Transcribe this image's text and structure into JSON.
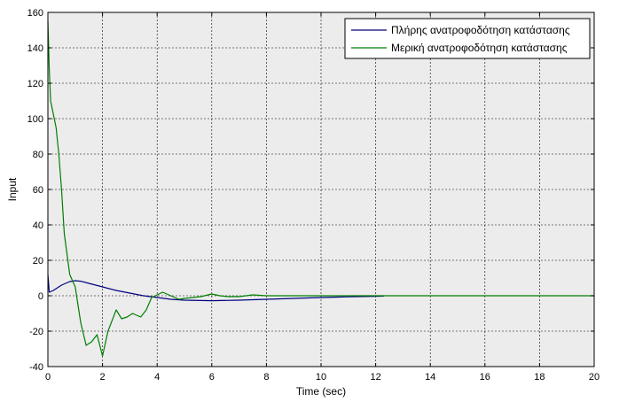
{
  "chart_data": {
    "type": "line",
    "xlabel": "Time (sec)",
    "ylabel": "Input",
    "xlim": [
      0,
      20
    ],
    "ylim": [
      -40,
      160
    ],
    "xticks": [
      0,
      2,
      4,
      6,
      8,
      10,
      12,
      14,
      16,
      18,
      20
    ],
    "yticks": [
      -40,
      -20,
      0,
      20,
      40,
      60,
      80,
      100,
      120,
      140,
      160
    ],
    "grid": true,
    "legend_position": "top-right",
    "background_color": "#ececec",
    "series": [
      {
        "name": "Πλήρης ανατροφοδότηση κατάστασης",
        "color": "#00007f",
        "x": [
          0,
          0.05,
          0.2,
          0.5,
          0.8,
          1.0,
          1.2,
          1.5,
          2.0,
          2.5,
          3.0,
          3.5,
          4.0,
          4.5,
          5.0,
          6.0,
          7.0,
          8.0,
          9.0,
          10.0,
          11.0,
          12.0,
          12.3
        ],
        "y": [
          12,
          2,
          3,
          6,
          8,
          8.5,
          8.2,
          7,
          5,
          3,
          1.5,
          0,
          -1,
          -2,
          -2.5,
          -2.8,
          -2.5,
          -2,
          -1.5,
          -1,
          -0.6,
          -0.3,
          -0.2
        ]
      },
      {
        "name": "Μερική ανατροφοδότηση κατάστασης",
        "color": "#007f00",
        "x": [
          0,
          0.05,
          0.1,
          0.3,
          0.4,
          0.5,
          0.6,
          0.8,
          1.0,
          1.2,
          1.4,
          1.6,
          1.8,
          2.0,
          2.2,
          2.5,
          2.7,
          2.9,
          3.1,
          3.4,
          3.6,
          3.8,
          4.0,
          4.2,
          4.5,
          4.8,
          5.0,
          5.3,
          5.6,
          6.0,
          6.3,
          6.6,
          7.0,
          7.5,
          8.0,
          9.0,
          10.0,
          12.0,
          14.0,
          16.0,
          18.0,
          20.0
        ],
        "y": [
          155,
          128,
          110,
          95,
          80,
          60,
          35,
          12,
          5,
          -15,
          -28,
          -26,
          -22,
          -34,
          -20,
          -8,
          -13,
          -12,
          -10,
          -12,
          -8,
          -1,
          0.5,
          2,
          0,
          -2,
          -1.5,
          -1,
          -0.5,
          1,
          0,
          -0.5,
          -0.5,
          0.5,
          0,
          0,
          0,
          0,
          0,
          0,
          0,
          0
        ]
      }
    ]
  }
}
